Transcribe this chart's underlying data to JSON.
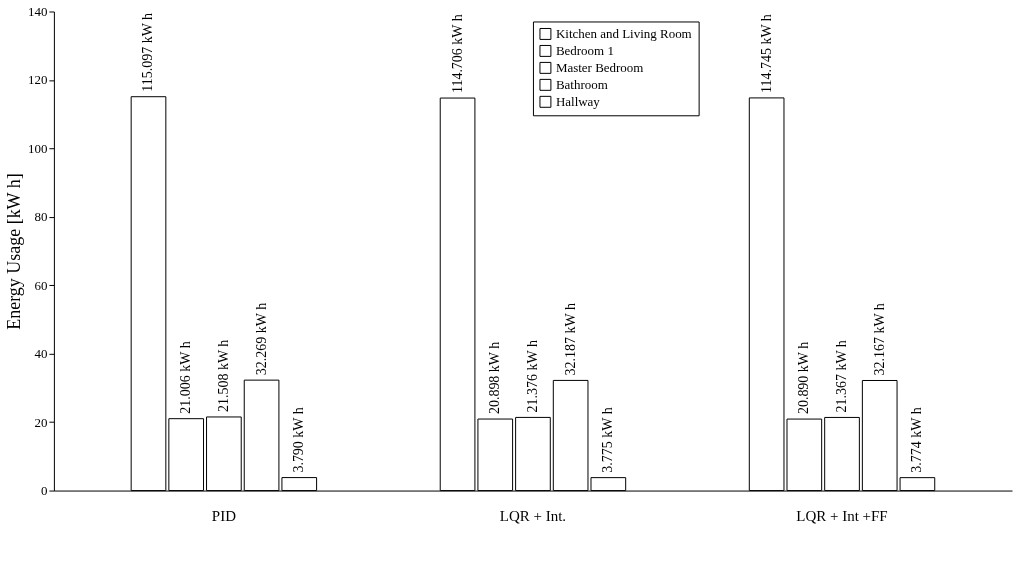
{
  "chart_data": {
    "type": "bar",
    "ylabel": "Energy Usage [kW h]",
    "categories": [
      "PID",
      "LQR + Int.",
      "LQR + Int +FF"
    ],
    "series": [
      {
        "name": "Kitchen and Living Room",
        "color": "#ffffff",
        "values": [
          115.097,
          114.706,
          114.745
        ],
        "value_labels": [
          "115.097 kW h",
          "114.706 kW h",
          "114.745 kW h"
        ]
      },
      {
        "name": "Bedroom 1",
        "color": "#ffffff",
        "values": [
          21.006,
          20.898,
          20.89
        ],
        "value_labels": [
          "21.006 kW h",
          "20.898 kW h",
          "20.890 kW h"
        ]
      },
      {
        "name": "Master Bedroom",
        "color": "#ffffff",
        "values": [
          21.508,
          21.376,
          21.367
        ],
        "value_labels": [
          "21.508 kW h",
          "21.376 kW h",
          "21.367 kW h"
        ]
      },
      {
        "name": "Bathroom",
        "color": "#ffffff",
        "values": [
          32.269,
          32.187,
          32.167
        ],
        "value_labels": [
          "32.269 kW h",
          "32.187 kW h",
          "32.167 kW h"
        ]
      },
      {
        "name": "Hallway",
        "color": "#ffffff",
        "values": [
          3.79,
          3.775,
          3.774
        ],
        "value_labels": [
          "3.790 kW h",
          "3.775 kW h",
          "3.774 kW h"
        ]
      }
    ],
    "ylim": [
      0,
      140
    ],
    "yticks": [
      0,
      20,
      40,
      60,
      80,
      100,
      120,
      140
    ],
    "grid": false,
    "legend": "top"
  }
}
